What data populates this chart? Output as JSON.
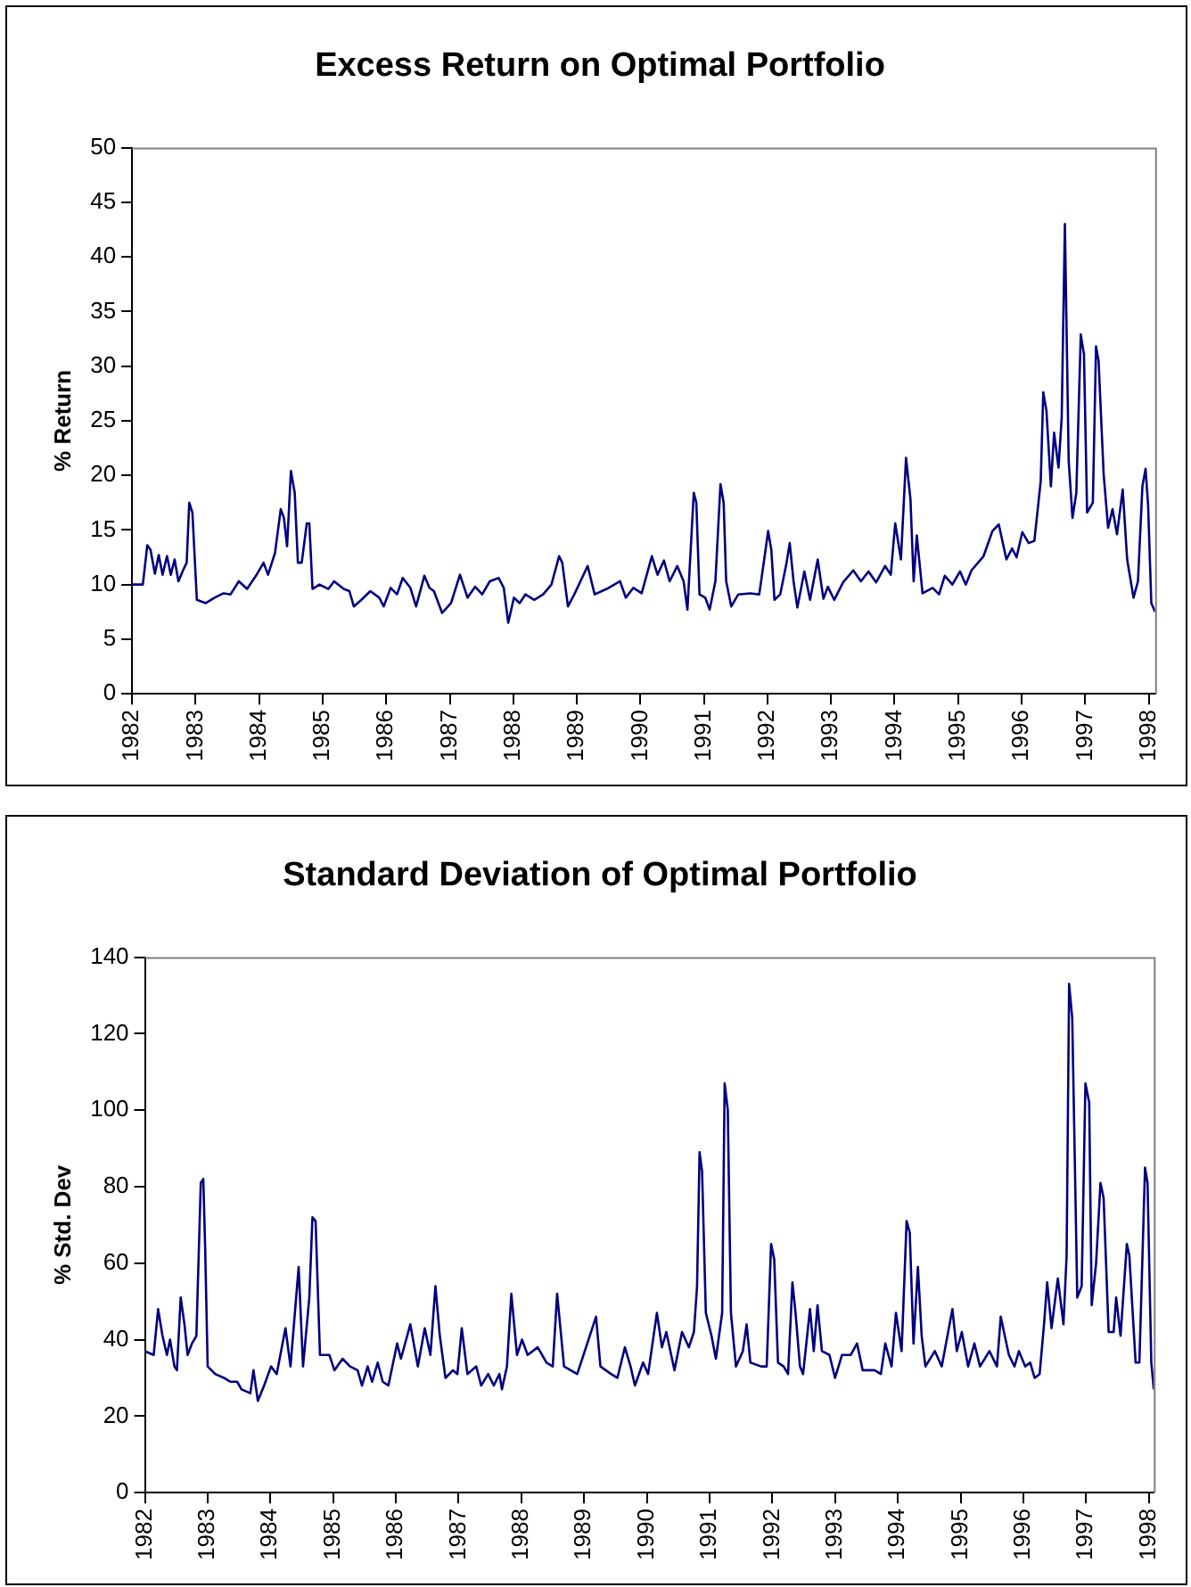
{
  "chart_data": [
    {
      "type": "line",
      "title": "Excess Return on Optimal Portfolio",
      "ylabel": "% Return",
      "x": [
        1982,
        1982.17,
        1982.24,
        1982.29,
        1982.36,
        1982.42,
        1982.48,
        1982.55,
        1982.61,
        1982.67,
        1982.73,
        1982.81,
        1982.86,
        1982.9,
        1982.95,
        1983.02,
        1983.16,
        1983.3,
        1983.44,
        1983.55,
        1983.68,
        1983.81,
        1983.95,
        1984.07,
        1984.14,
        1984.25,
        1984.34,
        1984.39,
        1984.44,
        1984.5,
        1984.56,
        1984.61,
        1984.67,
        1984.75,
        1984.79,
        1984.84,
        1984.95,
        1985.09,
        1985.18,
        1985.33,
        1985.42,
        1985.49,
        1985.61,
        1985.75,
        1985.89,
        1985.96,
        1986.07,
        1986.17,
        1986.26,
        1986.38,
        1986.47,
        1986.6,
        1986.68,
        1986.75,
        1986.88,
        1987.02,
        1987.16,
        1987.28,
        1987.4,
        1987.51,
        1987.63,
        1987.77,
        1987.85,
        1987.92,
        1988.01,
        1988.1,
        1988.19,
        1988.33,
        1988.47,
        1988.6,
        1988.72,
        1988.77,
        1988.86,
        1988.96,
        1989.17,
        1989.28,
        1989.47,
        1989.68,
        1989.77,
        1989.89,
        1990.02,
        1990.18,
        1990.27,
        1990.37,
        1990.46,
        1990.58,
        1990.68,
        1990.74,
        1990.84,
        1990.88,
        1990.93,
        1991.02,
        1991.09,
        1991.18,
        1991.26,
        1991.31,
        1991.35,
        1991.43,
        1991.54,
        1991.73,
        1991.87,
        1991.97,
        1992.01,
        1992.06,
        1992.11,
        1992.2,
        1992.3,
        1992.35,
        1992.41,
        1992.47,
        1992.58,
        1992.67,
        1992.79,
        1992.88,
        1992.95,
        1993.05,
        1993.19,
        1993.35,
        1993.47,
        1993.59,
        1993.71,
        1993.85,
        1993.94,
        1994.01,
        1994.1,
        1994.18,
        1994.25,
        1994.3,
        1994.35,
        1994.44,
        1994.6,
        1994.7,
        1994.79,
        1994.91,
        1995.03,
        1995.12,
        1995.21,
        1995.4,
        1995.54,
        1995.64,
        1995.76,
        1995.85,
        1995.92,
        1996.01,
        1996.11,
        1996.2,
        1996.3,
        1996.34,
        1996.39,
        1996.46,
        1996.51,
        1996.58,
        1996.63,
        1996.68,
        1996.74,
        1996.8,
        1996.86,
        1996.93,
        1996.98,
        1997.03,
        1997.12,
        1997.17,
        1997.21,
        1997.29,
        1997.36,
        1997.43,
        1997.5,
        1997.59,
        1997.66,
        1997.76,
        1997.83,
        1997.9,
        1997.95,
        1997.99,
        1998.04,
        1998.1
      ],
      "series": [
        {
          "color": "#000080",
          "values": [
            10,
            10,
            13.6,
            13.2,
            11,
            12.7,
            10.9,
            12.6,
            10.9,
            12.3,
            10.3,
            11.4,
            12,
            17.5,
            16.6,
            8.6,
            8.3,
            8.8,
            9.2,
            9.1,
            10.3,
            9.6,
            10.8,
            12,
            10.9,
            12.9,
            16.9,
            16.1,
            13.5,
            20.4,
            18.4,
            12,
            12,
            15.6,
            15.6,
            9.6,
            10,
            9.6,
            10.3,
            9.6,
            9.4,
            8,
            8.6,
            9.4,
            8.8,
            8,
            9.7,
            9.1,
            10.6,
            9.7,
            8,
            10.8,
            9.7,
            9.4,
            7.4,
            8.3,
            10.9,
            8.8,
            9.8,
            9.1,
            10.3,
            10.6,
            9.7,
            6.5,
            8.8,
            8.3,
            9.1,
            8.6,
            9.1,
            10,
            12.6,
            12,
            8,
            9.1,
            11.7,
            9.1,
            9.6,
            10.3,
            8.8,
            9.7,
            9.2,
            12.6,
            10.9,
            12.2,
            10.3,
            11.7,
            10.3,
            7.7,
            18.4,
            17.5,
            9.1,
            8.8,
            7.7,
            10.3,
            19.2,
            17.5,
            10.3,
            8,
            9.1,
            9.2,
            9.1,
            13.2,
            14.9,
            13.2,
            8.6,
            9.1,
            12,
            13.8,
            10.3,
            7.9,
            11.2,
            8.6,
            12.3,
            8.7,
            9.8,
            8.6,
            10.2,
            11.3,
            10.3,
            11.2,
            10.2,
            11.7,
            10.9,
            15.6,
            12.3,
            21.6,
            17.8,
            10.3,
            14.5,
            9.2,
            9.7,
            9.1,
            10.8,
            10,
            11.2,
            10,
            11.3,
            12.6,
            14.9,
            15.5,
            12.3,
            13.3,
            12.5,
            14.8,
            13.8,
            14,
            19.5,
            27.6,
            25.9,
            19,
            23.9,
            20.7,
            25.3,
            43,
            21.3,
            16.1,
            18.4,
            32.9,
            31.1,
            16.6,
            17.5,
            31.8,
            30.5,
            20.1,
            15.2,
            16.9,
            14.6,
            18.7,
            12.3,
            8.8,
            10.3,
            19,
            20.6,
            17.2,
            8.3,
            7.5
          ]
        }
      ],
      "xlim": [
        1982,
        1998.1
      ],
      "xticks": [
        1982,
        1983,
        1984,
        1985,
        1986,
        1987,
        1988,
        1989,
        1990,
        1991,
        1992,
        1993,
        1994,
        1995,
        1996,
        1997,
        1998
      ],
      "ylim": [
        0,
        50
      ],
      "yticks": [
        0,
        5,
        10,
        15,
        20,
        25,
        30,
        35,
        40,
        45,
        50
      ],
      "marker": "none",
      "line_style": "solid"
    },
    {
      "type": "line",
      "title": "Standard Deviation of Optimal Portfolio",
      "ylabel": "% Std. Dev",
      "x": [
        1982,
        1982.14,
        1982.21,
        1982.28,
        1982.35,
        1982.4,
        1982.47,
        1982.51,
        1982.57,
        1982.63,
        1982.68,
        1982.75,
        1982.82,
        1982.89,
        1982.93,
        1982.96,
        1983,
        1983.12,
        1983.26,
        1983.36,
        1983.47,
        1983.54,
        1983.68,
        1983.73,
        1983.8,
        1983.9,
        1984.01,
        1984.1,
        1984.24,
        1984.32,
        1984.45,
        1984.52,
        1984.62,
        1984.67,
        1984.72,
        1984.79,
        1984.94,
        1985.02,
        1985.15,
        1985.27,
        1985.39,
        1985.46,
        1985.55,
        1985.62,
        1985.71,
        1985.79,
        1985.88,
        1986.02,
        1986.08,
        1986.23,
        1986.35,
        1986.46,
        1986.55,
        1986.63,
        1986.7,
        1986.79,
        1986.91,
        1986.98,
        1987.05,
        1987.14,
        1987.28,
        1987.36,
        1987.47,
        1987.56,
        1987.65,
        1987.69,
        1987.77,
        1987.84,
        1987.93,
        1988.01,
        1988.1,
        1988.26,
        1988.4,
        1988.5,
        1988.57,
        1988.68,
        1988.89,
        1989.19,
        1989.26,
        1989.43,
        1989.53,
        1989.65,
        1989.74,
        1989.81,
        1989.94,
        1990.02,
        1990.16,
        1990.24,
        1990.31,
        1990.44,
        1990.56,
        1990.67,
        1990.75,
        1990.8,
        1990.84,
        1990.88,
        1990.94,
        1991.03,
        1991.1,
        1991.2,
        1991.24,
        1991.29,
        1991.34,
        1991.42,
        1991.53,
        1991.59,
        1991.65,
        1991.82,
        1991.91,
        1991.98,
        1992.03,
        1992.09,
        1992.18,
        1992.25,
        1992.32,
        1992.37,
        1992.44,
        1992.49,
        1992.6,
        1992.66,
        1992.72,
        1992.79,
        1992.91,
        1993,
        1993.11,
        1993.25,
        1993.35,
        1993.44,
        1993.63,
        1993.73,
        1993.8,
        1993.9,
        1993.97,
        1994.06,
        1994.14,
        1994.19,
        1994.25,
        1994.32,
        1994.38,
        1994.44,
        1994.59,
        1994.7,
        1994.87,
        1994.94,
        1995.02,
        1995.12,
        1995.22,
        1995.31,
        1995.46,
        1995.58,
        1995.64,
        1995.77,
        1995.86,
        1995.93,
        1996.03,
        1996.11,
        1996.18,
        1996.26,
        1996.33,
        1996.38,
        1996.45,
        1996.55,
        1996.64,
        1996.69,
        1996.73,
        1996.78,
        1996.86,
        1996.93,
        1996.99,
        1997.05,
        1997.09,
        1997.16,
        1997.23,
        1997.28,
        1997.36,
        1997.44,
        1997.48,
        1997.55,
        1997.65,
        1997.69,
        1997.79,
        1997.85,
        1997.94,
        1997.98,
        1998.04,
        1998.08
      ],
      "series": [
        {
          "color": "#000080",
          "values": [
            37,
            36,
            48,
            41,
            36,
            40,
            33,
            32,
            51,
            44,
            36,
            39,
            41,
            81,
            82,
            64,
            33,
            31,
            30,
            29,
            29,
            27,
            26,
            32,
            24,
            28,
            33,
            31,
            43,
            33,
            59,
            33,
            51,
            72,
            71,
            36,
            36,
            32,
            35,
            33,
            32,
            28,
            33,
            29,
            34,
            29,
            28,
            39,
            35,
            44,
            33,
            43,
            36,
            54,
            41,
            30,
            32,
            31,
            43,
            31,
            33,
            28,
            31,
            28,
            31,
            27,
            33,
            52,
            36,
            40,
            36,
            38,
            34,
            33,
            52,
            33,
            31,
            46,
            33,
            31,
            30,
            38,
            33,
            28,
            34,
            31,
            47,
            38,
            42,
            32,
            42,
            38,
            42,
            54,
            89,
            84,
            47,
            41,
            35,
            47,
            107,
            100,
            47,
            33,
            37,
            44,
            34,
            33,
            33,
            65,
            61,
            34,
            33,
            31,
            55,
            47,
            33,
            31,
            48,
            37,
            49,
            37,
            36,
            30,
            36,
            36,
            39,
            32,
            32,
            31,
            39,
            33,
            47,
            37,
            71,
            68,
            39,
            59,
            41,
            33,
            37,
            33,
            48,
            37,
            42,
            33,
            39,
            33,
            37,
            33,
            46,
            36,
            33,
            37,
            33,
            34,
            30,
            31,
            44,
            55,
            43,
            56,
            44,
            62,
            133,
            124,
            51,
            54,
            107,
            102,
            49,
            60,
            81,
            77,
            42,
            42,
            51,
            41,
            65,
            62,
            34,
            34,
            85,
            81,
            34,
            27
          ]
        }
      ],
      "xlim": [
        1982,
        1998.08
      ],
      "xticks": [
        1982,
        1983,
        1984,
        1985,
        1986,
        1987,
        1988,
        1989,
        1990,
        1991,
        1992,
        1993,
        1994,
        1995,
        1996,
        1997,
        1998
      ],
      "ylim": [
        0,
        140
      ],
      "yticks": [
        0,
        20,
        40,
        60,
        80,
        100,
        120,
        140
      ],
      "marker": "none",
      "line_style": "solid"
    }
  ]
}
